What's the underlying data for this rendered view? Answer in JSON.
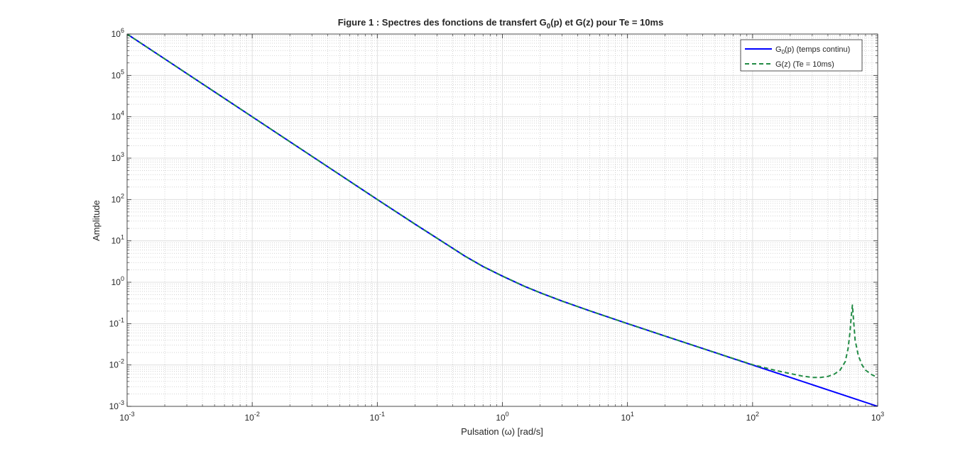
{
  "chart_data": {
    "type": "line",
    "title": {
      "main": "Figure 1 : Spectres des fonctions de transfert G",
      "sub": "0",
      "rest": "(p) et G(z) pour Te = 10ms"
    },
    "xlabel": "Pulsation (ω) [rad/s]",
    "ylabel": "Amplitude",
    "xscale": "log",
    "yscale": "log",
    "xlim": [
      0.001,
      1000
    ],
    "ylim": [
      0.001,
      1000000
    ],
    "x_ticks": [
      {
        "base": "10",
        "exp": "-3",
        "value": 0.001
      },
      {
        "base": "10",
        "exp": "-2",
        "value": 0.01
      },
      {
        "base": "10",
        "exp": "-1",
        "value": 0.1
      },
      {
        "base": "10",
        "exp": "0",
        "value": 1
      },
      {
        "base": "10",
        "exp": "1",
        "value": 10
      },
      {
        "base": "10",
        "exp": "2",
        "value": 100
      },
      {
        "base": "10",
        "exp": "3",
        "value": 1000
      }
    ],
    "y_ticks": [
      {
        "base": "10",
        "exp": "-3",
        "value": 0.001
      },
      {
        "base": "10",
        "exp": "-2",
        "value": 0.01
      },
      {
        "base": "10",
        "exp": "-1",
        "value": 0.1
      },
      {
        "base": "10",
        "exp": "0",
        "value": 1
      },
      {
        "base": "10",
        "exp": "1",
        "value": 10
      },
      {
        "base": "10",
        "exp": "2",
        "value": 100
      },
      {
        "base": "10",
        "exp": "3",
        "value": 1000
      },
      {
        "base": "10",
        "exp": "4",
        "value": 10000
      },
      {
        "base": "10",
        "exp": "5",
        "value": 100000
      },
      {
        "base": "10",
        "exp": "6",
        "value": 1000000
      }
    ],
    "grid": true,
    "minor_grid": true,
    "legend_position": "top-right",
    "series": [
      {
        "name": {
          "main": "G",
          "sub": "0",
          "rest": "(p) (temps continu)"
        },
        "color": "#0000ff",
        "style": "solid",
        "points": [
          [
            0.001,
            1000000
          ],
          [
            0.002,
            250000
          ],
          [
            0.005,
            40000
          ],
          [
            0.01,
            10000
          ],
          [
            0.02,
            2500
          ],
          [
            0.05,
            400
          ],
          [
            0.1,
            100
          ],
          [
            0.2,
            25.5
          ],
          [
            0.3,
            11.6
          ],
          [
            0.5,
            4.3
          ],
          [
            0.7,
            2.4
          ],
          [
            1,
            1.41
          ],
          [
            1.5,
            0.8
          ],
          [
            2,
            0.56
          ],
          [
            3,
            0.35
          ],
          [
            5,
            0.204
          ],
          [
            7,
            0.144
          ],
          [
            10,
            0.1
          ],
          [
            20,
            0.05
          ],
          [
            50,
            0.02
          ],
          [
            100,
            0.01
          ],
          [
            200,
            0.005
          ],
          [
            500,
            0.002
          ],
          [
            1000,
            0.001
          ]
        ]
      },
      {
        "name": {
          "main": "G(z) (Te = 10ms)",
          "sub": "",
          "rest": ""
        },
        "color": "#228b45",
        "style": "dashed",
        "points": [
          [
            0.001,
            1000000
          ],
          [
            0.002,
            250000
          ],
          [
            0.005,
            40000
          ],
          [
            0.01,
            10000
          ],
          [
            0.02,
            2500
          ],
          [
            0.05,
            400
          ],
          [
            0.1,
            100
          ],
          [
            0.2,
            25.5
          ],
          [
            0.3,
            11.6
          ],
          [
            0.5,
            4.3
          ],
          [
            0.7,
            2.4
          ],
          [
            1,
            1.41
          ],
          [
            1.5,
            0.8
          ],
          [
            2,
            0.56
          ],
          [
            3,
            0.35
          ],
          [
            5,
            0.204
          ],
          [
            7,
            0.144
          ],
          [
            10,
            0.1
          ],
          [
            20,
            0.05
          ],
          [
            50,
            0.02
          ],
          [
            100,
            0.0102
          ],
          [
            150,
            0.0075
          ],
          [
            200,
            0.0062
          ],
          [
            250,
            0.0054
          ],
          [
            300,
            0.005
          ],
          [
            350,
            0.005
          ],
          [
            400,
            0.0053
          ],
          [
            450,
            0.006
          ],
          [
            500,
            0.0075
          ],
          [
            550,
            0.012
          ],
          [
            580,
            0.025
          ],
          [
            600,
            0.06
          ],
          [
            615,
            0.15
          ],
          [
            628,
            0.28
          ],
          [
            640,
            0.13
          ],
          [
            660,
            0.04
          ],
          [
            700,
            0.017
          ],
          [
            750,
            0.01
          ],
          [
            800,
            0.0075
          ],
          [
            900,
            0.0058
          ],
          [
            1000,
            0.005
          ]
        ]
      }
    ]
  }
}
